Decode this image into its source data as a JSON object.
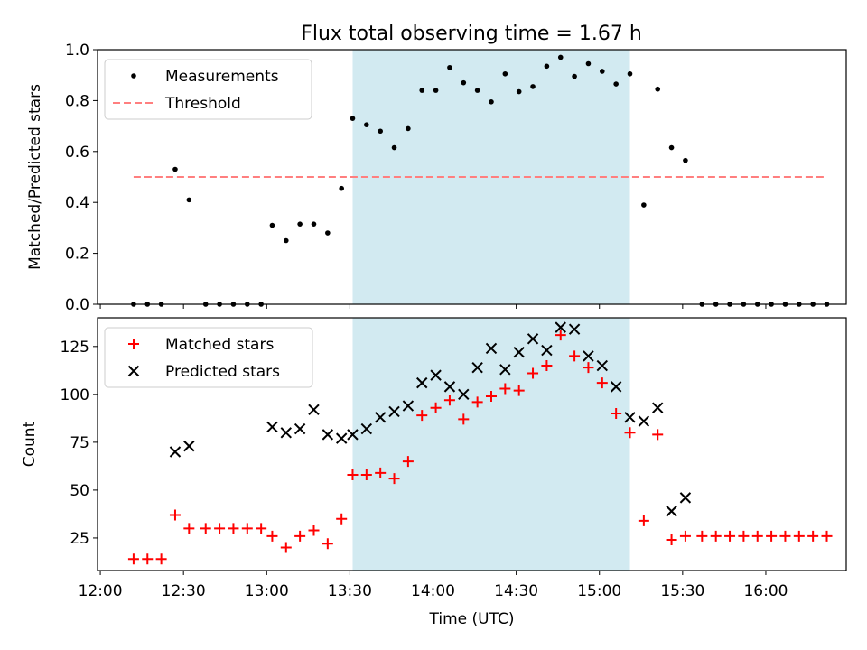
{
  "title": "Flux total observing time = 1.67 h",
  "colors": {
    "highlight": "#add8e6",
    "threshold": "#ff7f7f",
    "matched": "#ff0000",
    "predicted": "#000000",
    "measurements": "#000000"
  },
  "chart_data": [
    {
      "type": "scatter",
      "ylabel": "Matched/Predicted stars",
      "ylim": [
        0,
        1.0
      ],
      "yticks": [
        0.0,
        0.2,
        0.4,
        0.6,
        0.8,
        1.0
      ],
      "ytick_labels": [
        "0.0",
        "0.2",
        "0.4",
        "0.6",
        "0.8",
        "1.0"
      ],
      "xlim": [
        "11:59",
        "16:29"
      ],
      "highlight_span": [
        "13:31",
        "15:11"
      ],
      "legend_position": "top-left",
      "series": [
        {
          "name": "Measurements",
          "marker": "dot",
          "points": [
            [
              "12:12",
              0
            ],
            [
              "12:17",
              0
            ],
            [
              "12:22",
              0
            ],
            [
              "12:27",
              0.53
            ],
            [
              "12:32",
              0.41
            ],
            [
              "12:38",
              0
            ],
            [
              "12:43",
              0
            ],
            [
              "12:48",
              0
            ],
            [
              "12:53",
              0
            ],
            [
              "12:58",
              0
            ],
            [
              "13:02",
              0.31
            ],
            [
              "13:07",
              0.25
            ],
            [
              "13:12",
              0.315
            ],
            [
              "13:17",
              0.315
            ],
            [
              "13:22",
              0.28
            ],
            [
              "13:27",
              0.455
            ],
            [
              "13:31",
              0.73
            ],
            [
              "13:36",
              0.705
            ],
            [
              "13:41",
              0.68
            ],
            [
              "13:46",
              0.615
            ],
            [
              "13:51",
              0.69
            ],
            [
              "13:56",
              0.84
            ],
            [
              "14:01",
              0.84
            ],
            [
              "14:06",
              0.93
            ],
            [
              "14:11",
              0.87
            ],
            [
              "14:16",
              0.84
            ],
            [
              "14:21",
              0.795
            ],
            [
              "14:26",
              0.905
            ],
            [
              "14:31",
              0.835
            ],
            [
              "14:36",
              0.855
            ],
            [
              "14:41",
              0.935
            ],
            [
              "14:46",
              0.97
            ],
            [
              "14:51",
              0.895
            ],
            [
              "14:56",
              0.945
            ],
            [
              "15:01",
              0.915
            ],
            [
              "15:06",
              0.865
            ],
            [
              "15:11",
              0.905
            ],
            [
              "15:16",
              0.39
            ],
            [
              "15:21",
              0.845
            ],
            [
              "15:26",
              0.615
            ],
            [
              "15:31",
              0.565
            ],
            [
              "15:37",
              0
            ],
            [
              "15:42",
              0
            ],
            [
              "15:47",
              0
            ],
            [
              "15:52",
              0
            ],
            [
              "15:57",
              0
            ],
            [
              "16:02",
              0
            ],
            [
              "16:07",
              0
            ],
            [
              "16:12",
              0
            ],
            [
              "16:17",
              0
            ],
            [
              "16:22",
              0
            ]
          ]
        },
        {
          "name": "Threshold",
          "marker": "dashed-line",
          "points": [
            [
              "12:12",
              0.5
            ],
            [
              "16:22",
              0.5
            ]
          ]
        }
      ]
    },
    {
      "type": "scatter",
      "xlabel": "Time (UTC)",
      "ylabel": "Count",
      "ylim": [
        8,
        140
      ],
      "yticks": [
        25,
        50,
        75,
        100,
        125
      ],
      "ytick_labels": [
        "25",
        "50",
        "75",
        "100",
        "125"
      ],
      "xlim": [
        "11:59",
        "16:29"
      ],
      "xticks": [
        "12:00",
        "12:30",
        "13:00",
        "13:30",
        "14:00",
        "14:30",
        "15:00",
        "15:30",
        "16:00"
      ],
      "xtick_labels": [
        "12:00",
        "12:30",
        "13:00",
        "13:30",
        "14:00",
        "14:30",
        "15:00",
        "15:30",
        "16:00"
      ],
      "highlight_span": [
        "13:31",
        "15:11"
      ],
      "legend_position": "top-left",
      "series": [
        {
          "name": "Matched stars",
          "marker": "plus",
          "points": [
            [
              "12:12",
              14
            ],
            [
              "12:17",
              14
            ],
            [
              "12:22",
              14
            ],
            [
              "12:27",
              37
            ],
            [
              "12:32",
              30
            ],
            [
              "12:38",
              30
            ],
            [
              "12:43",
              30
            ],
            [
              "12:48",
              30
            ],
            [
              "12:53",
              30
            ],
            [
              "12:58",
              30
            ],
            [
              "13:02",
              26
            ],
            [
              "13:07",
              20
            ],
            [
              "13:12",
              26
            ],
            [
              "13:17",
              29
            ],
            [
              "13:22",
              22
            ],
            [
              "13:27",
              35
            ],
            [
              "13:31",
              58
            ],
            [
              "13:36",
              58
            ],
            [
              "13:41",
              59
            ],
            [
              "13:46",
              56
            ],
            [
              "13:51",
              65
            ],
            [
              "13:56",
              89
            ],
            [
              "14:01",
              93
            ],
            [
              "14:06",
              97
            ],
            [
              "14:11",
              87
            ],
            [
              "14:16",
              96
            ],
            [
              "14:21",
              99
            ],
            [
              "14:26",
              103
            ],
            [
              "14:31",
              102
            ],
            [
              "14:36",
              111
            ],
            [
              "14:41",
              115
            ],
            [
              "14:46",
              131
            ],
            [
              "14:51",
              120
            ],
            [
              "14:56",
              114
            ],
            [
              "15:01",
              106
            ],
            [
              "15:06",
              90
            ],
            [
              "15:11",
              80
            ],
            [
              "15:16",
              34
            ],
            [
              "15:21",
              79
            ],
            [
              "15:26",
              24
            ],
            [
              "15:31",
              26
            ],
            [
              "15:37",
              26
            ],
            [
              "15:42",
              26
            ],
            [
              "15:47",
              26
            ],
            [
              "15:52",
              26
            ],
            [
              "15:57",
              26
            ],
            [
              "16:02",
              26
            ],
            [
              "16:07",
              26
            ],
            [
              "16:12",
              26
            ],
            [
              "16:17",
              26
            ],
            [
              "16:22",
              26
            ]
          ]
        },
        {
          "name": "Predicted stars",
          "marker": "x",
          "points": [
            [
              "12:27",
              70
            ],
            [
              "12:32",
              73
            ],
            [
              "13:02",
              83
            ],
            [
              "13:07",
              80
            ],
            [
              "13:12",
              82
            ],
            [
              "13:17",
              92
            ],
            [
              "13:22",
              79
            ],
            [
              "13:27",
              77
            ],
            [
              "13:31",
              79
            ],
            [
              "13:36",
              82
            ],
            [
              "13:41",
              88
            ],
            [
              "13:46",
              91
            ],
            [
              "13:51",
              94
            ],
            [
              "13:56",
              106
            ],
            [
              "14:01",
              110
            ],
            [
              "14:06",
              104
            ],
            [
              "14:11",
              100
            ],
            [
              "14:16",
              114
            ],
            [
              "14:21",
              124
            ],
            [
              "14:26",
              113
            ],
            [
              "14:31",
              122
            ],
            [
              "14:36",
              129
            ],
            [
              "14:41",
              123
            ],
            [
              "14:46",
              135
            ],
            [
              "14:51",
              134
            ],
            [
              "14:56",
              120
            ],
            [
              "15:01",
              115
            ],
            [
              "15:06",
              104
            ],
            [
              "15:11",
              88
            ],
            [
              "15:16",
              86
            ],
            [
              "15:21",
              93
            ],
            [
              "15:26",
              39
            ],
            [
              "15:31",
              46
            ]
          ]
        }
      ]
    }
  ]
}
